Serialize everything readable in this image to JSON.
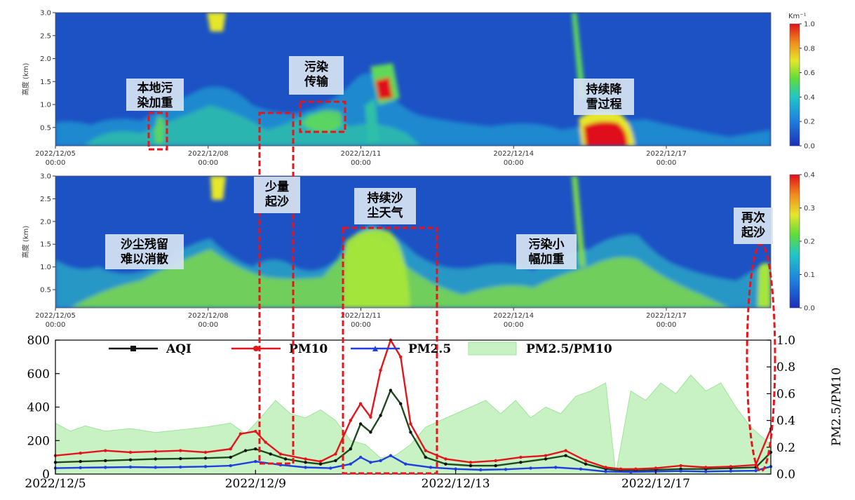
{
  "chart_data": [
    {
      "type": "heatmap",
      "ylabel": "高度 (km)",
      "ylim": [
        0.1,
        3.0
      ],
      "yticks": [
        "3.0",
        "2.5",
        "2.0",
        "1.5",
        "1.0",
        "0.5"
      ],
      "xticks": [
        {
          "date": "2022/12/05",
          "time": "00:00"
        },
        {
          "date": "2022/12/08",
          "time": "00:00"
        },
        {
          "date": "2022/12/11",
          "time": "00:00"
        },
        {
          "date": "2022/12/14",
          "time": "00:00"
        },
        {
          "date": "2022/12/17",
          "time": "00:00"
        }
      ],
      "colorbar": {
        "unit": "Km⁻¹",
        "range": [
          0.0,
          1.0
        ],
        "ticks": [
          "1.0",
          "0.8",
          "0.6",
          "0.4",
          "0.2",
          "0.0"
        ]
      },
      "colors": {
        "low": "#1c52c4",
        "mid": "#3fcf3f",
        "high": "#e8141a"
      },
      "annotations": [
        "本地污\n染加重",
        "污染\n传输",
        "持续降\n雪过程"
      ]
    },
    {
      "type": "heatmap",
      "ylabel": "高度 (km)",
      "ylim": [
        0.1,
        3.0
      ],
      "yticks": [
        "3.0",
        "2.5",
        "2.0",
        "1.5",
        "1.0",
        "0.5"
      ],
      "xticks": [
        {
          "date": "2022/12/05",
          "time": "00:00"
        },
        {
          "date": "2022/12/08",
          "time": "00:00"
        },
        {
          "date": "2022/12/11",
          "time": "00:00"
        },
        {
          "date": "2022/12/14",
          "time": "00:00"
        },
        {
          "date": "2022/12/17",
          "time": "00:00"
        }
      ],
      "colorbar": {
        "unit": "",
        "range": [
          0.0,
          0.4
        ],
        "ticks": [
          "0.4",
          "0.3",
          "0.2",
          "0.1",
          "0.0"
        ]
      },
      "annotations": [
        "少量\n起沙",
        "持续沙\n尘天气",
        "沙尘残留\n难以消散",
        "污染小\n幅加重",
        "再次\n起沙"
      ]
    },
    {
      "type": "line",
      "x_days": [
        5,
        19.3
      ],
      "xticks": [
        "2022/12/5",
        "2022/12/9",
        "2022/12/13",
        "2022/12/17"
      ],
      "ylim": [
        0,
        800
      ],
      "yticks": [
        "0",
        "200",
        "400",
        "600",
        "800"
      ],
      "y2label": "PM2.5/PM10",
      "y2lim": [
        0,
        1.0
      ],
      "y2ticks": [
        "0.0",
        "0.2",
        "0.4",
        "0.6",
        "0.8",
        "1.0"
      ],
      "legend": [
        "AQI",
        "PM10",
        "PM2.5",
        "PM2.5/PM10"
      ],
      "series": [
        {
          "name": "AQI",
          "color": "#111111",
          "axis": "left",
          "points": [
            [
              5.0,
              70
            ],
            [
              5.5,
              75
            ],
            [
              6.0,
              80
            ],
            [
              6.5,
              85
            ],
            [
              7.0,
              90
            ],
            [
              7.5,
              92
            ],
            [
              8.0,
              95
            ],
            [
              8.5,
              100
            ],
            [
              8.8,
              140
            ],
            [
              9.0,
              150
            ],
            [
              9.3,
              120
            ],
            [
              9.6,
              90
            ],
            [
              10.0,
              70
            ],
            [
              10.3,
              60
            ],
            [
              10.6,
              80
            ],
            [
              10.9,
              150
            ],
            [
              11.1,
              300
            ],
            [
              11.3,
              250
            ],
            [
              11.5,
              350
            ],
            [
              11.7,
              500
            ],
            [
              11.9,
              420
            ],
            [
              12.1,
              250
            ],
            [
              12.4,
              100
            ],
            [
              12.8,
              60
            ],
            [
              13.3,
              50
            ],
            [
              13.8,
              50
            ],
            [
              14.3,
              70
            ],
            [
              14.8,
              90
            ],
            [
              15.2,
              110
            ],
            [
              15.6,
              60
            ],
            [
              16.0,
              30
            ],
            [
              16.3,
              20
            ],
            [
              16.6,
              20
            ],
            [
              17.0,
              25
            ],
            [
              17.5,
              30
            ],
            [
              18.0,
              30
            ],
            [
              18.5,
              35
            ],
            [
              19.0,
              40
            ],
            [
              19.3,
              130
            ]
          ]
        },
        {
          "name": "PM10",
          "color": "#e3141a",
          "axis": "left",
          "points": [
            [
              5.0,
              110
            ],
            [
              5.5,
              125
            ],
            [
              6.0,
              140
            ],
            [
              6.5,
              130
            ],
            [
              7.0,
              135
            ],
            [
              7.5,
              140
            ],
            [
              8.0,
              130
            ],
            [
              8.5,
              150
            ],
            [
              8.7,
              240
            ],
            [
              9.0,
              255
            ],
            [
              9.2,
              190
            ],
            [
              9.5,
              120
            ],
            [
              10.0,
              90
            ],
            [
              10.3,
              75
            ],
            [
              10.6,
              120
            ],
            [
              10.9,
              320
            ],
            [
              11.1,
              420
            ],
            [
              11.3,
              340
            ],
            [
              11.5,
              620
            ],
            [
              11.7,
              980
            ],
            [
              11.9,
              700
            ],
            [
              12.1,
              300
            ],
            [
              12.4,
              140
            ],
            [
              12.8,
              90
            ],
            [
              13.3,
              70
            ],
            [
              13.8,
              80
            ],
            [
              14.3,
              100
            ],
            [
              14.8,
              110
            ],
            [
              15.2,
              140
            ],
            [
              15.6,
              80
            ],
            [
              16.0,
              40
            ],
            [
              16.3,
              30
            ],
            [
              16.6,
              30
            ],
            [
              17.0,
              35
            ],
            [
              17.5,
              50
            ],
            [
              18.0,
              40
            ],
            [
              18.5,
              45
            ],
            [
              19.0,
              55
            ],
            [
              19.3,
              270
            ]
          ]
        },
        {
          "name": "PM2.5",
          "color": "#1e3fe0",
          "axis": "left",
          "points": [
            [
              5.0,
              35
            ],
            [
              5.5,
              38
            ],
            [
              6.0,
              40
            ],
            [
              6.5,
              42
            ],
            [
              7.0,
              40
            ],
            [
              7.5,
              42
            ],
            [
              8.0,
              45
            ],
            [
              8.5,
              50
            ],
            [
              9.0,
              75
            ],
            [
              9.5,
              55
            ],
            [
              10.0,
              40
            ],
            [
              10.5,
              35
            ],
            [
              10.9,
              60
            ],
            [
              11.1,
              100
            ],
            [
              11.3,
              70
            ],
            [
              11.5,
              80
            ],
            [
              11.7,
              110
            ],
            [
              12.0,
              60
            ],
            [
              12.5,
              40
            ],
            [
              13.0,
              30
            ],
            [
              13.5,
              25
            ],
            [
              14.0,
              28
            ],
            [
              14.5,
              35
            ],
            [
              15.0,
              40
            ],
            [
              15.5,
              30
            ],
            [
              16.0,
              15
            ],
            [
              16.5,
              12
            ],
            [
              17.0,
              15
            ],
            [
              17.5,
              18
            ],
            [
              18.0,
              15
            ],
            [
              18.5,
              18
            ],
            [
              19.0,
              20
            ],
            [
              19.3,
              45
            ]
          ]
        },
        {
          "name": "PM2.5/PM10",
          "color": "#c8f2c4",
          "axis": "right",
          "points": [
            [
              5.0,
              0.38
            ],
            [
              5.3,
              0.32
            ],
            [
              5.6,
              0.36
            ],
            [
              6.0,
              0.32
            ],
            [
              6.5,
              0.34
            ],
            [
              7.0,
              0.31
            ],
            [
              7.5,
              0.33
            ],
            [
              8.0,
              0.35
            ],
            [
              8.5,
              0.38
            ],
            [
              8.8,
              0.3
            ],
            [
              9.1,
              0.42
            ],
            [
              9.4,
              0.55
            ],
            [
              9.7,
              0.45
            ],
            [
              10.0,
              0.42
            ],
            [
              10.3,
              0.48
            ],
            [
              10.6,
              0.4
            ],
            [
              10.9,
              0.25
            ],
            [
              11.2,
              0.22
            ],
            [
              11.5,
              0.12
            ],
            [
              11.8,
              0.14
            ],
            [
              12.1,
              0.22
            ],
            [
              12.4,
              0.35
            ],
            [
              12.7,
              0.4
            ],
            [
              13.0,
              0.45
            ],
            [
              13.3,
              0.5
            ],
            [
              13.6,
              0.55
            ],
            [
              13.9,
              0.45
            ],
            [
              14.2,
              0.55
            ],
            [
              14.5,
              0.42
            ],
            [
              14.8,
              0.5
            ],
            [
              15.1,
              0.45
            ],
            [
              15.4,
              0.58
            ],
            [
              15.7,
              0.62
            ],
            [
              16.0,
              0.68
            ],
            [
              16.2,
              0.0
            ],
            [
              16.5,
              0.62
            ],
            [
              16.8,
              0.55
            ],
            [
              17.1,
              0.68
            ],
            [
              17.4,
              0.6
            ],
            [
              17.7,
              0.74
            ],
            [
              18.0,
              0.62
            ],
            [
              18.3,
              0.68
            ],
            [
              18.6,
              0.5
            ],
            [
              18.9,
              0.35
            ],
            [
              19.3,
              0.22
            ]
          ]
        }
      ],
      "annotation_boxes": [
        "少量起沙",
        "持续沙尘天气",
        "再次起沙"
      ]
    }
  ],
  "annotations": {
    "p1_a": "本地污\n染加重",
    "p1_b": "污染\n传输",
    "p1_c": "持续降\n雪过程",
    "p2_a": "少量\n起沙",
    "p2_b": "持续沙\n尘天气",
    "p2_c": "沙尘残留\n难以消散",
    "p2_d": "污染小\n幅加重",
    "p2_e": "再次\n起沙"
  }
}
